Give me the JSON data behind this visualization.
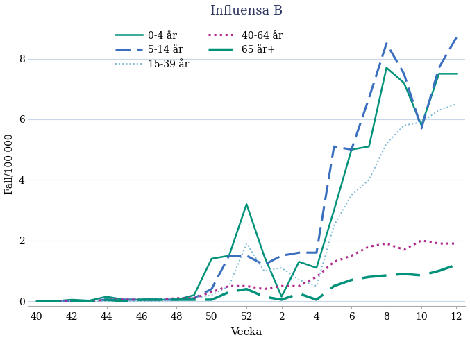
{
  "title": "Influensa B",
  "xlabel": "Vecka",
  "ylabel": "Fall/100 000",
  "ylim": [
    -0.15,
    9.2
  ],
  "background_color": "#ffffff",
  "grid_color": "#c8d8e8",
  "weeks": [
    40,
    41,
    42,
    43,
    44,
    45,
    46,
    47,
    48,
    49,
    50,
    51,
    52,
    1,
    2,
    3,
    4,
    5,
    6,
    7,
    8,
    9,
    10,
    11,
    12
  ],
  "xtick_labels": [
    "40",
    "42",
    "44",
    "46",
    "48",
    "50",
    "52",
    "2",
    "4",
    "6",
    "8",
    "10",
    "12"
  ],
  "xtick_weeks": [
    40,
    42,
    44,
    46,
    48,
    50,
    52,
    2,
    4,
    6,
    8,
    10,
    12
  ],
  "yticks": [
    0,
    2,
    4,
    6,
    8
  ],
  "series": {
    "0-4 år": {
      "color": "#00917a",
      "linestyle": "solid",
      "linewidth": 1.8,
      "values": [
        0.0,
        0.0,
        0.05,
        0.02,
        0.15,
        0.05,
        0.05,
        0.05,
        0.05,
        0.2,
        1.4,
        1.5,
        3.2,
        1.5,
        0.15,
        1.3,
        1.1,
        3.0,
        5.0,
        5.1,
        7.7,
        7.2,
        5.8,
        7.5,
        7.5
      ]
    },
    "5-14 år": {
      "color": "#3a6ebf",
      "linestyle": "dashed",
      "linewidth": 2.2,
      "dashes": [
        7,
        3
      ],
      "values": [
        0.0,
        0.0,
        0.0,
        0.0,
        0.05,
        0.05,
        0.05,
        0.05,
        0.05,
        0.1,
        0.4,
        1.5,
        1.5,
        1.2,
        1.5,
        1.6,
        1.6,
        5.1,
        5.0,
        6.7,
        8.5,
        7.5,
        5.7,
        7.7,
        8.7
      ]
    },
    "15-39 år": {
      "color": "#7bb8d4",
      "linestyle": "dotted",
      "linewidth": 1.4,
      "values": [
        0.0,
        0.0,
        0.0,
        0.0,
        0.0,
        0.0,
        0.0,
        0.0,
        0.05,
        0.1,
        0.2,
        0.5,
        1.9,
        1.0,
        1.1,
        0.7,
        0.5,
        2.5,
        3.5,
        4.0,
        5.2,
        5.8,
        5.9,
        6.3,
        6.5
      ]
    },
    "40-64 år": {
      "color": "#b0288c",
      "linestyle": "dotted",
      "linewidth": 2.2,
      "values": [
        0.0,
        0.0,
        0.0,
        0.0,
        0.05,
        0.05,
        0.05,
        0.05,
        0.1,
        0.1,
        0.3,
        0.5,
        0.5,
        0.4,
        0.5,
        0.5,
        0.8,
        1.3,
        1.5,
        1.8,
        1.9,
        1.7,
        2.0,
        1.9,
        1.9
      ]
    },
    "65 år+": {
      "color": "#00917a",
      "linestyle": "dashed",
      "linewidth": 2.5,
      "dashes": [
        10,
        4
      ],
      "values": [
        0.0,
        0.0,
        0.0,
        0.0,
        0.05,
        0.0,
        0.05,
        0.05,
        0.05,
        0.05,
        0.05,
        0.3,
        0.4,
        0.15,
        0.05,
        0.25,
        0.05,
        0.5,
        0.7,
        0.8,
        0.85,
        0.9,
        0.85,
        1.0,
        1.2
      ]
    }
  },
  "legend": {
    "entries": [
      {
        "label": "0-4 år",
        "color": "#00917a",
        "ls": "solid",
        "lw": 1.8,
        "dashes": null
      },
      {
        "label": "5-14 år",
        "color": "#3a6ebf",
        "ls": "dashed",
        "lw": 2.2,
        "dashes": [
          7,
          3
        ]
      },
      {
        "label": "15-39 år",
        "color": "#7bb8d4",
        "ls": "dotted",
        "lw": 1.4,
        "dashes": null
      },
      {
        "label": "40-64 år",
        "color": "#b0288c",
        "ls": "dotted",
        "lw": 2.2,
        "dashes": null
      },
      {
        "label": "65 år+",
        "color": "#00917a",
        "ls": "dashed",
        "lw": 2.5,
        "dashes": [
          10,
          4
        ]
      }
    ]
  }
}
